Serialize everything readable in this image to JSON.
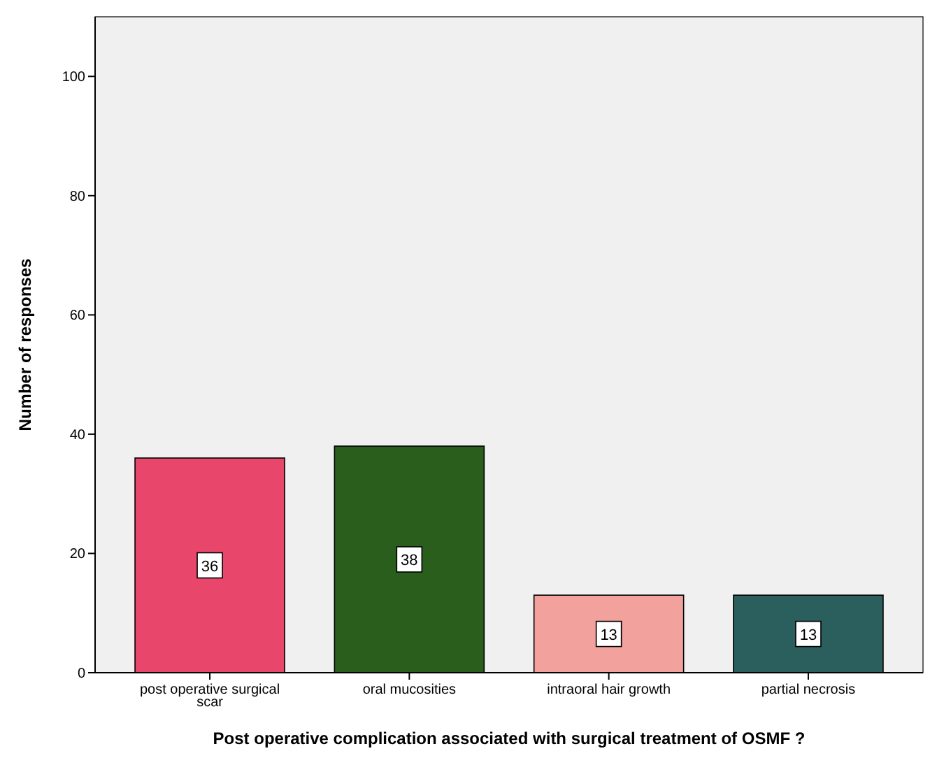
{
  "chart_data": {
    "type": "bar",
    "xlabel": "Post operative complication associated with surgical treatment of OSMF ?",
    "ylabel": "Number of responses",
    "categories": [
      "post operative surgical scar",
      "oral mucosities",
      "intraoral hair growth",
      "partial necrosis"
    ],
    "values": [
      36,
      38,
      13,
      13
    ],
    "colors": [
      "#e8476b",
      "#2a5e1c",
      "#f2a19d",
      "#2a5f5e"
    ],
    "ylim": [
      0,
      110
    ],
    "yticks": [
      0,
      20,
      40,
      60,
      80,
      100
    ],
    "grid": false,
    "data_labels": true
  }
}
